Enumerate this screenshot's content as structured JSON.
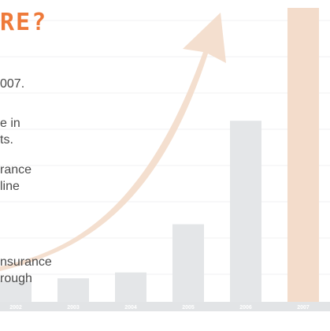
{
  "headline": "RE?",
  "text_lines": [
    [
      "007."
    ],
    [
      "e in",
      "ts."
    ],
    [
      "rance",
      "line"
    ],
    [
      "nsurance",
      "rough"
    ]
  ],
  "chart_data": {
    "type": "bar",
    "categories": [
      "2002",
      "2003",
      "2004",
      "2005",
      "2006",
      "2007"
    ],
    "values": [
      18,
      20,
      25,
      66,
      154,
      250
    ],
    "highlight_category": "2007",
    "colors": {
      "bar": "#e4e6e8",
      "highlight": "#f3dccb",
      "arrow": "#f3dccb",
      "axis_band": "#e2e4e6",
      "tick_label": "#ffffff",
      "headline": "#ee7a3a",
      "body_text": "#4a4a4a"
    },
    "ylim": [
      0,
      250
    ],
    "grid": true,
    "legend": "none",
    "annotation": "rising-arrow"
  }
}
